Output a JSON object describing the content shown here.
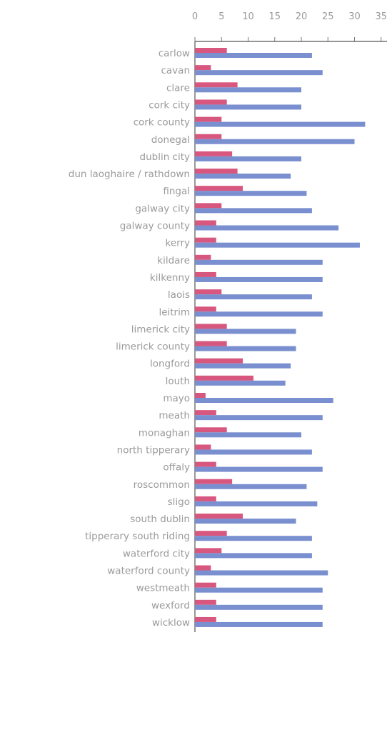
{
  "chart_data": {
    "type": "bar",
    "orientation": "horizontal",
    "xlim": [
      0,
      35
    ],
    "xticks": [
      "0",
      "5",
      "10",
      "15",
      "20",
      "25",
      "30",
      "35"
    ],
    "grid": false,
    "categories": [
      "carlow",
      "cavan",
      "clare",
      "cork city",
      "cork county",
      "donegal",
      "dublin city",
      "dun laoghaire / rathdown",
      "fingal",
      "galway city",
      "galway county",
      "kerry",
      "kildare",
      "kilkenny",
      "laois",
      "leitrim",
      "limerick city",
      "limerick county",
      "longford",
      "louth",
      "mayo",
      "meath",
      "monaghan",
      "north tipperary",
      "offaly",
      "roscommon",
      "sligo",
      "south dublin",
      "tipperary south riding",
      "waterford city",
      "waterford county",
      "westmeath",
      "wexford",
      "wicklow"
    ],
    "series": [
      {
        "color": "#d8577f",
        "values": [
          6,
          3,
          8,
          6,
          5,
          5,
          7,
          8,
          9,
          5,
          4,
          4,
          3,
          4,
          5,
          4,
          6,
          6,
          9,
          11,
          2,
          4,
          6,
          3,
          4,
          7,
          4,
          9,
          6,
          5,
          3,
          4,
          4,
          4
        ]
      },
      {
        "color": "#7a8fcf",
        "values": [
          22,
          24,
          20,
          20,
          32,
          30,
          20,
          18,
          21,
          22,
          27,
          31,
          24,
          24,
          22,
          24,
          19,
          19,
          18,
          17,
          26,
          24,
          20,
          22,
          24,
          21,
          23,
          19,
          22,
          22,
          25,
          24,
          24,
          24
        ]
      }
    ]
  }
}
